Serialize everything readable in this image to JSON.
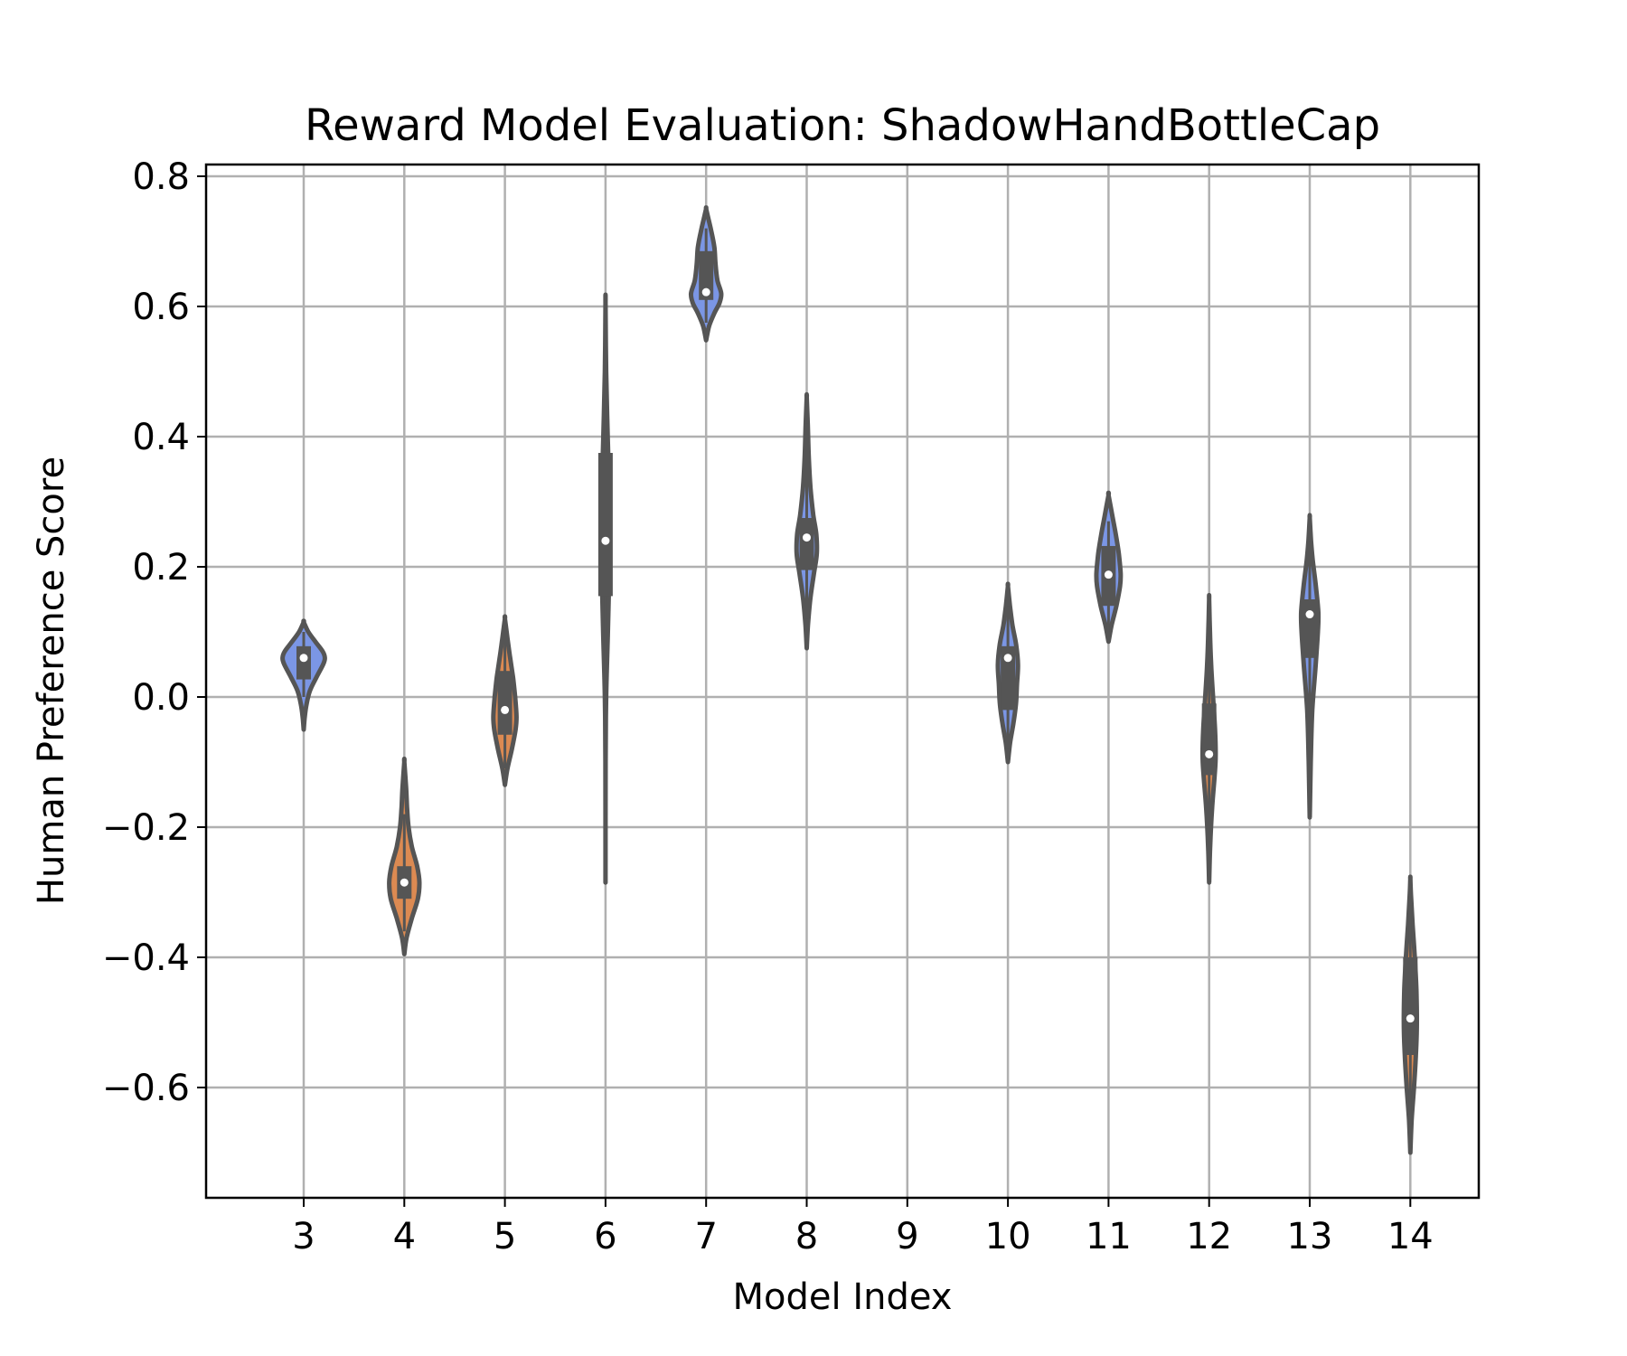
{
  "chart_data": {
    "type": "violin",
    "title": "Reward Model Evaluation: ShadowHandBottleCap",
    "xlabel": "Model Index",
    "ylabel": "Human Preference Score",
    "ylim": [
      -0.77,
      0.82
    ],
    "yticks": [
      0.8,
      0.6,
      0.4,
      0.2,
      0.0,
      -0.2,
      -0.4,
      -0.6
    ],
    "ytick_labels": [
      "0.8",
      "0.6",
      "0.4",
      "0.2",
      "0.0",
      "−0.2",
      "−0.4",
      "−0.6"
    ],
    "categories": [
      "3",
      "4",
      "5",
      "6",
      "7",
      "8",
      "9",
      "10",
      "11",
      "12",
      "13",
      "14"
    ],
    "grid": true,
    "colors": {
      "blue": "#7b96e5",
      "orange": "#dc8a52",
      "outline": "#555555",
      "grid": "#b0b0b0"
    },
    "violins": [
      {
        "category": "3",
        "color": "blue",
        "min": -0.05,
        "max": 0.115,
        "q1": 0.027,
        "q3": 0.078,
        "median": 0.06,
        "whisker_low": 0.0,
        "whisker_high": 0.1,
        "width": 0.42,
        "density": [
          [
            -0.05,
            0
          ],
          [
            -0.03,
            0.05
          ],
          [
            -0.01,
            0.14
          ],
          [
            0.01,
            0.3
          ],
          [
            0.03,
            0.6
          ],
          [
            0.05,
            0.92
          ],
          [
            0.06,
            1.0
          ],
          [
            0.07,
            0.9
          ],
          [
            0.085,
            0.55
          ],
          [
            0.1,
            0.22
          ],
          [
            0.115,
            0
          ]
        ]
      },
      {
        "category": "4",
        "color": "orange",
        "min": -0.395,
        "max": -0.1,
        "q1": -0.31,
        "q3": -0.26,
        "median": -0.285,
        "whisker_low": -0.36,
        "whisker_high": -0.18,
        "width": 0.3,
        "density": [
          [
            -0.395,
            0
          ],
          [
            -0.37,
            0.15
          ],
          [
            -0.34,
            0.5
          ],
          [
            -0.31,
            0.9
          ],
          [
            -0.285,
            1.0
          ],
          [
            -0.26,
            0.85
          ],
          [
            -0.23,
            0.5
          ],
          [
            -0.2,
            0.28
          ],
          [
            -0.17,
            0.18
          ],
          [
            -0.14,
            0.12
          ],
          [
            -0.1,
            0
          ]
        ]
      },
      {
        "category": "5",
        "color": "orange",
        "min": -0.135,
        "max": 0.12,
        "q1": -0.058,
        "q3": 0.04,
        "median": -0.02,
        "whisker_low": -0.11,
        "whisker_high": 0.1,
        "width": 0.23,
        "density": [
          [
            -0.135,
            0
          ],
          [
            -0.11,
            0.22
          ],
          [
            -0.08,
            0.6
          ],
          [
            -0.05,
            0.92
          ],
          [
            -0.03,
            1.0
          ],
          [
            0.0,
            0.88
          ],
          [
            0.03,
            0.7
          ],
          [
            0.06,
            0.45
          ],
          [
            0.09,
            0.22
          ],
          [
            0.12,
            0
          ]
        ]
      },
      {
        "category": "6",
        "color": "blue",
        "min": -0.285,
        "max": 0.605,
        "q1": 0.155,
        "q3": 0.375,
        "median": 0.24,
        "whisker_low": -0.05,
        "whisker_high": 0.6,
        "width": 0.085,
        "density": [
          [
            -0.285,
            0
          ],
          [
            -0.1,
            0.02
          ],
          [
            0.0,
            0.15
          ],
          [
            0.1,
            0.55
          ],
          [
            0.2,
            0.9
          ],
          [
            0.25,
            1.0
          ],
          [
            0.3,
            0.92
          ],
          [
            0.4,
            0.5
          ],
          [
            0.5,
            0.15
          ],
          [
            0.605,
            0
          ]
        ]
      },
      {
        "category": "7",
        "color": "blue",
        "min": 0.548,
        "max": 0.75,
        "q1": 0.61,
        "q3": 0.685,
        "median": 0.622,
        "whisker_low": 0.575,
        "whisker_high": 0.72,
        "width": 0.3,
        "density": [
          [
            0.548,
            0
          ],
          [
            0.57,
            0.2
          ],
          [
            0.59,
            0.55
          ],
          [
            0.605,
            0.88
          ],
          [
            0.62,
            1.0
          ],
          [
            0.64,
            0.75
          ],
          [
            0.665,
            0.62
          ],
          [
            0.69,
            0.55
          ],
          [
            0.715,
            0.35
          ],
          [
            0.735,
            0.15
          ],
          [
            0.75,
            0
          ]
        ]
      },
      {
        "category": "8",
        "color": "blue",
        "min": 0.075,
        "max": 0.46,
        "q1": 0.195,
        "q3": 0.275,
        "median": 0.245,
        "whisker_low": 0.12,
        "whisker_high": 0.42,
        "width": 0.2,
        "density": [
          [
            0.075,
            0
          ],
          [
            0.11,
            0.12
          ],
          [
            0.15,
            0.35
          ],
          [
            0.19,
            0.72
          ],
          [
            0.22,
            1.0
          ],
          [
            0.25,
            0.95
          ],
          [
            0.28,
            0.65
          ],
          [
            0.32,
            0.38
          ],
          [
            0.37,
            0.2
          ],
          [
            0.42,
            0.1
          ],
          [
            0.46,
            0
          ]
        ]
      },
      {
        "category": "10",
        "color": "blue",
        "min": -0.1,
        "max": 0.17,
        "q1": -0.02,
        "q3": 0.078,
        "median": 0.06,
        "whisker_low": -0.08,
        "whisker_high": 0.14,
        "width": 0.2,
        "density": [
          [
            -0.1,
            0
          ],
          [
            -0.07,
            0.22
          ],
          [
            -0.04,
            0.55
          ],
          [
            -0.01,
            0.8
          ],
          [
            0.02,
            0.9
          ],
          [
            0.05,
            1.0
          ],
          [
            0.08,
            0.82
          ],
          [
            0.11,
            0.45
          ],
          [
            0.14,
            0.2
          ],
          [
            0.17,
            0
          ]
        ]
      },
      {
        "category": "11",
        "color": "blue",
        "min": 0.085,
        "max": 0.31,
        "q1": 0.14,
        "q3": 0.232,
        "median": 0.188,
        "whisker_low": 0.1,
        "whisker_high": 0.27,
        "width": 0.24,
        "density": [
          [
            0.085,
            0
          ],
          [
            0.11,
            0.25
          ],
          [
            0.14,
            0.65
          ],
          [
            0.17,
            0.95
          ],
          [
            0.19,
            1.0
          ],
          [
            0.22,
            0.85
          ],
          [
            0.25,
            0.6
          ],
          [
            0.28,
            0.3
          ],
          [
            0.31,
            0
          ]
        ]
      },
      {
        "category": "12",
        "color": "orange",
        "min": -0.285,
        "max": 0.15,
        "q1": -0.12,
        "q3": -0.01,
        "median": -0.088,
        "whisker_low": -0.25,
        "whisker_high": 0.1,
        "width": 0.13,
        "density": [
          [
            -0.285,
            0
          ],
          [
            -0.23,
            0.15
          ],
          [
            -0.17,
            0.45
          ],
          [
            -0.12,
            0.85
          ],
          [
            -0.09,
            1.0
          ],
          [
            -0.05,
            0.9
          ],
          [
            0.0,
            0.6
          ],
          [
            0.05,
            0.3
          ],
          [
            0.1,
            0.12
          ],
          [
            0.15,
            0
          ]
        ]
      },
      {
        "category": "13",
        "color": "blue",
        "min": -0.185,
        "max": 0.275,
        "q1": 0.06,
        "q3": 0.15,
        "median": 0.127,
        "whisker_low": -0.15,
        "whisker_high": 0.24,
        "width": 0.17,
        "density": [
          [
            -0.185,
            0
          ],
          [
            -0.1,
            0.12
          ],
          [
            -0.02,
            0.3
          ],
          [
            0.05,
            0.7
          ],
          [
            0.1,
            0.95
          ],
          [
            0.13,
            1.0
          ],
          [
            0.17,
            0.72
          ],
          [
            0.21,
            0.35
          ],
          [
            0.24,
            0.15
          ],
          [
            0.275,
            0
          ]
        ]
      },
      {
        "category": "14",
        "color": "orange",
        "min": -0.7,
        "max": -0.28,
        "q1": -0.55,
        "q3": -0.4,
        "median": -0.494,
        "whisker_low": -0.66,
        "whisker_high": -0.32,
        "width": 0.13,
        "density": [
          [
            -0.7,
            0
          ],
          [
            -0.65,
            0.2
          ],
          [
            -0.6,
            0.55
          ],
          [
            -0.55,
            0.85
          ],
          [
            -0.5,
            1.0
          ],
          [
            -0.45,
            0.92
          ],
          [
            -0.4,
            0.68
          ],
          [
            -0.35,
            0.35
          ],
          [
            -0.31,
            0.12
          ],
          [
            -0.28,
            0
          ]
        ]
      }
    ]
  }
}
